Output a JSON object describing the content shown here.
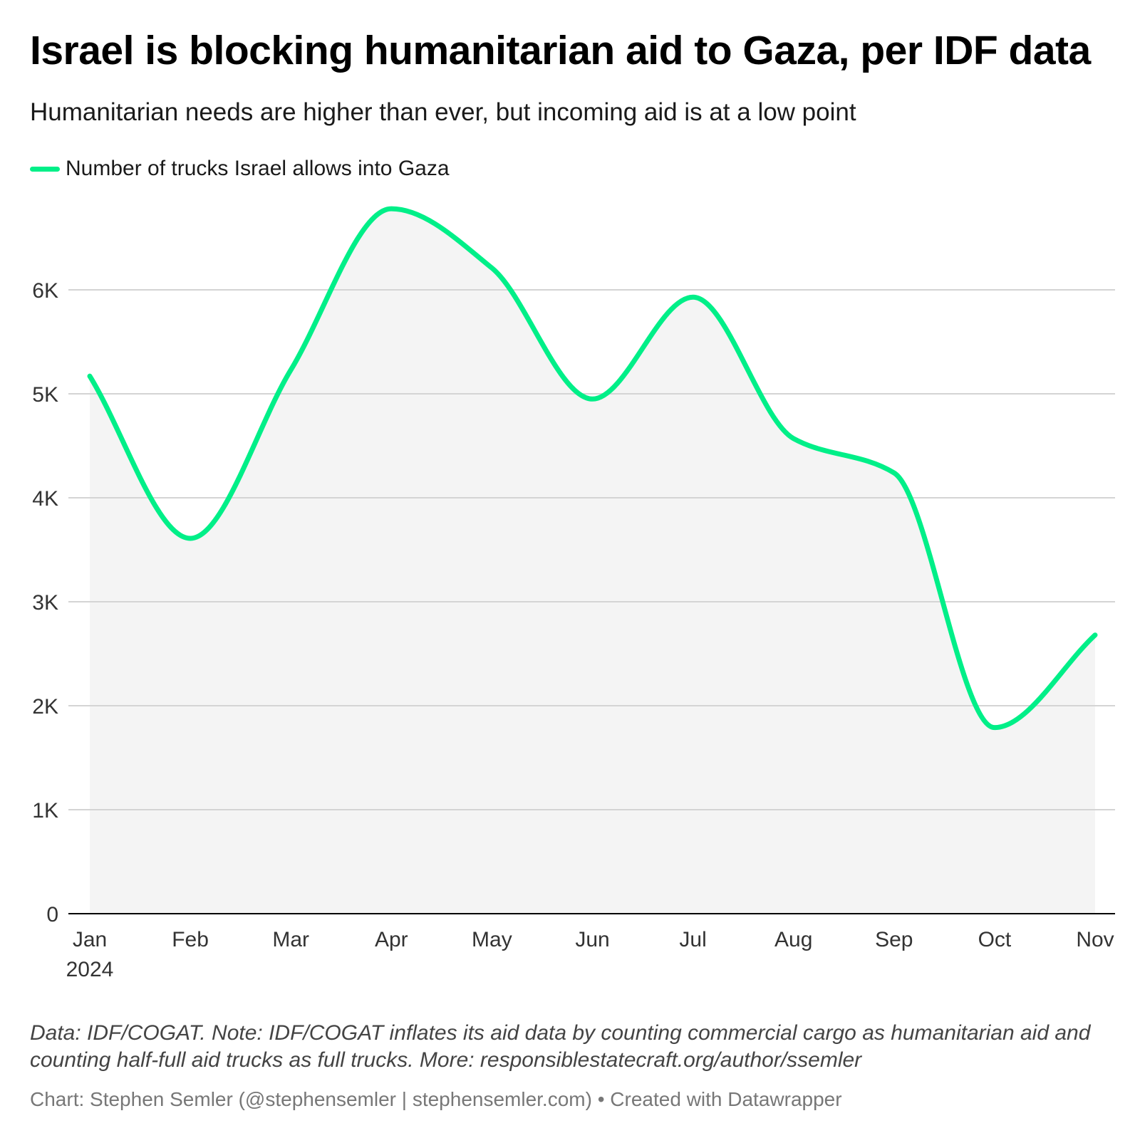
{
  "title": "Israel is blocking humanitarian aid to Gaza, per IDF data",
  "subtitle": "Humanitarian needs are higher than ever, but incoming aid is at a low point",
  "colors": {
    "line": "#00ef88",
    "area": "#f4f4f4",
    "grid": "#d4d4d4",
    "axis": "#000000",
    "tick_text": "#333333"
  },
  "chart_data": {
    "type": "area",
    "categories": [
      "Jan",
      "Feb",
      "Mar",
      "Apr",
      "May",
      "Jun",
      "Jul",
      "Aug",
      "Sep",
      "Oct",
      "Nov"
    ],
    "x_year_label": "2024",
    "series": [
      {
        "name": "Number of trucks Israel allows into Gaza",
        "values": [
          5170,
          3610,
          5230,
          6780,
          6210,
          4950,
          5930,
          4570,
          4240,
          1790,
          2680
        ]
      }
    ],
    "y_ticks": [
      0,
      1000,
      2000,
      3000,
      4000,
      5000,
      6000
    ],
    "y_tick_labels": [
      "0",
      "1K",
      "2K",
      "3K",
      "4K",
      "5K",
      "6K"
    ],
    "ylim": [
      0,
      6900
    ],
    "xlabel": "",
    "ylabel": "",
    "grid": true,
    "legend": "top-left"
  },
  "notes": "Data: IDF/COGAT. Note: IDF/COGAT inflates its aid data by counting commercial cargo as humanitarian aid and counting half-full aid trucks as full trucks. More: responsiblestatecraft.org/author/ssemler",
  "credit": "Chart: Stephen Semler (@stephensemler | stephensemler.com) • Created with Datawrapper"
}
